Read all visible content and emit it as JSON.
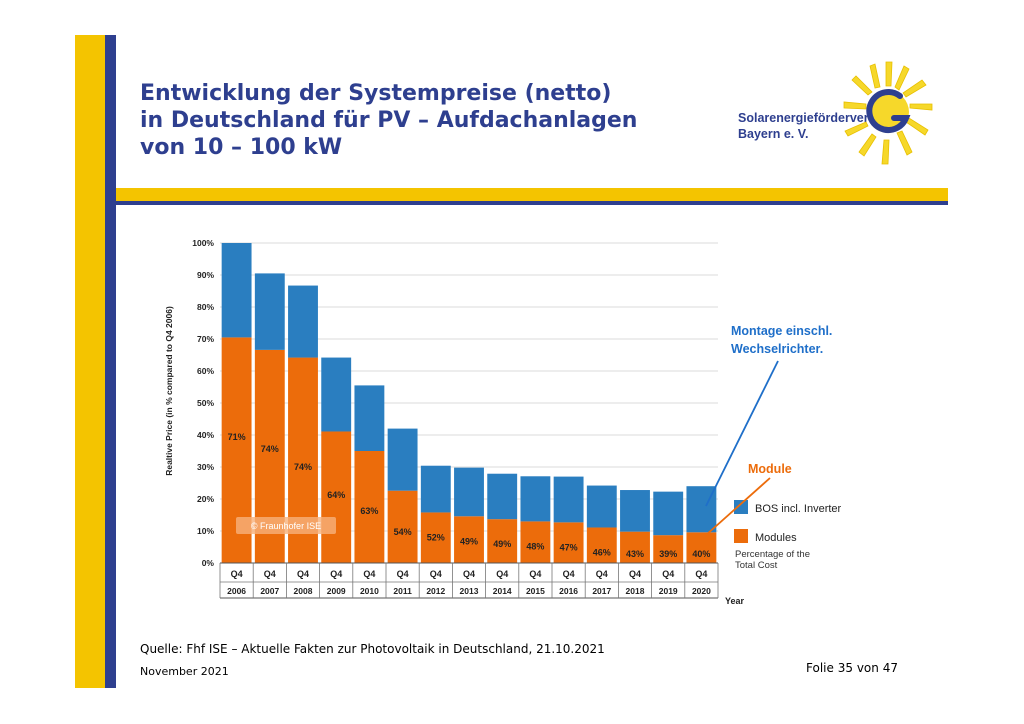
{
  "slide": {
    "title_lines": [
      "Entwicklung der Systempreise (netto)",
      "in Deutschland für PV – Aufdachanlagen",
      "von 10 – 100 kW"
    ],
    "logo_lines": [
      "Solarenergieförderverein",
      "Bayern e. V."
    ],
    "source": "Quelle: Fhf ISE – Aktuelle Fakten zur Photovoltaik in Deutschland, 21.10.2021",
    "date": "November 2021",
    "page_prefix": "Folie",
    "page_current": "35",
    "page_sep": "von",
    "page_total": "47",
    "colors": {
      "brand_blue": "#2e3f8f",
      "brand_yellow": "#f4c400"
    }
  },
  "chart_data": {
    "type": "bar",
    "stacked": true,
    "quarters": [
      "Q4",
      "Q4",
      "Q4",
      "Q4",
      "Q4",
      "Q4",
      "Q4",
      "Q4",
      "Q4",
      "Q4",
      "Q4",
      "Q4",
      "Q4",
      "Q4",
      "Q4"
    ],
    "categories": [
      "2006",
      "2007",
      "2008",
      "2009",
      "2010",
      "2011",
      "2012",
      "2013",
      "2014",
      "2015",
      "2016",
      "2017",
      "2018",
      "2019",
      "2020"
    ],
    "ylabel": "Realtive Price (in % compared to Q4 2006)",
    "xlabel": "Year",
    "ylim": [
      0,
      100
    ],
    "yticks": [
      "0%",
      "10%",
      "20%",
      "30%",
      "40%",
      "50%",
      "60%",
      "70%",
      "80%",
      "90%",
      "100%"
    ],
    "grid": true,
    "series": [
      {
        "name": "Modules",
        "color": "#ec6c0b",
        "values": [
          70.5,
          66.6,
          64.2,
          41.1,
          35.0,
          22.6,
          15.8,
          14.6,
          13.7,
          13.0,
          12.7,
          11.1,
          9.8,
          8.7,
          9.6
        ]
      },
      {
        "name": "BOS incl. Inverter",
        "color": "#2a7ec0",
        "values": [
          29.5,
          23.9,
          22.5,
          23.1,
          20.5,
          19.4,
          14.6,
          15.2,
          14.2,
          14.1,
          14.3,
          13.1,
          13.0,
          13.6,
          14.4
        ]
      }
    ],
    "share_labels": [
      "71%",
      "74%",
      "74%",
      "64%",
      "63%",
      "54%",
      "52%",
      "49%",
      "49%",
      "48%",
      "47%",
      "46%",
      "43%",
      "39%",
      "40%"
    ],
    "legend": {
      "position": "right",
      "items": [
        "BOS incl. Inverter",
        "Modules"
      ],
      "note_lines": [
        "Percentage of the",
        "Total Cost"
      ]
    },
    "watermark": "© Fraunhofer ISE",
    "annotations": {
      "bos_lines": [
        "Montage einschl.",
        "Wechselrichter."
      ],
      "modules": "Module",
      "bos_color": "#1f6fc9",
      "modules_color": "#ec6c0b"
    }
  }
}
